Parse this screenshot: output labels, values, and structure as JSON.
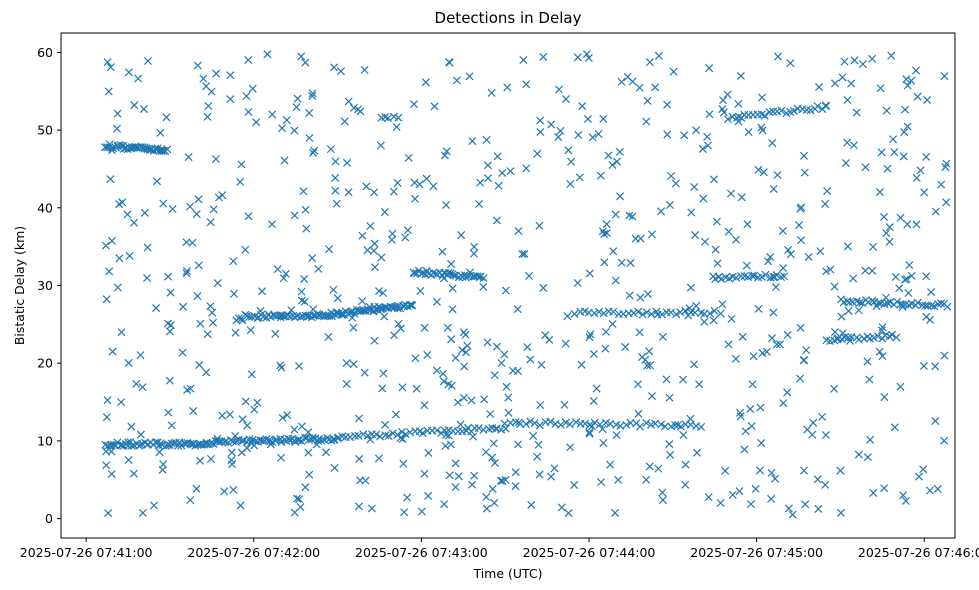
{
  "chart_data": {
    "type": "scatter",
    "title": "Detections in Delay",
    "xlabel": "Time (UTC)",
    "ylabel": "Bistatic Delay (km)",
    "xlim": [
      "2025-07-26 07:40:51",
      "2025-07-26 07:46:11"
    ],
    "ylim": [
      -2.5,
      62.5
    ],
    "xticks": [
      "2025-07-26 07:41:00",
      "2025-07-26 07:42:00",
      "2025-07-26 07:43:00",
      "2025-07-26 07:44:00",
      "2025-07-26 07:45:00",
      "2025-07-26 07:46:00"
    ],
    "yticks": [
      "0",
      "10",
      "20",
      "30",
      "40",
      "50",
      "60"
    ],
    "marker": "x",
    "grid": false,
    "series_color": "#1f77b4",
    "tracks": [
      {
        "x_start": "2025-07-26 07:41:07",
        "x_end": "2025-07-26 07:41:29",
        "y_start": 48.0,
        "y_end": 47.4,
        "count": 40
      },
      {
        "x_start": "2025-07-26 07:41:07",
        "x_end": "2025-07-26 07:41:43",
        "y_start": 9.6,
        "y_end": 9.6,
        "count": 50
      },
      {
        "x_start": "2025-07-26 07:41:43",
        "x_end": "2025-07-26 07:42:30",
        "y_start": 9.8,
        "y_end": 10.3,
        "count": 60
      },
      {
        "x_start": "2025-07-26 07:42:30",
        "x_end": "2025-07-26 07:43:30",
        "y_start": 10.5,
        "y_end": 11.6,
        "count": 40
      },
      {
        "x_start": "2025-07-26 07:43:30",
        "x_end": "2025-07-26 07:44:40",
        "y_start": 12.3,
        "y_end": 12.0,
        "count": 40
      },
      {
        "x_start": "2025-07-26 07:41:55",
        "x_end": "2025-07-26 07:42:20",
        "y_start": 26.0,
        "y_end": 26.1,
        "count": 30
      },
      {
        "x_start": "2025-07-26 07:42:20",
        "x_end": "2025-07-26 07:42:57",
        "y_start": 26.0,
        "y_end": 27.4,
        "count": 60
      },
      {
        "x_start": "2025-07-26 07:42:57",
        "x_end": "2025-07-26 07:43:22",
        "y_start": 31.8,
        "y_end": 31.0,
        "count": 35
      },
      {
        "x_start": "2025-07-26 07:43:55",
        "x_end": "2025-07-26 07:44:45",
        "y_start": 26.5,
        "y_end": 26.5,
        "count": 30
      },
      {
        "x_start": "2025-07-26 07:44:45",
        "x_end": "2025-07-26 07:45:10",
        "y_start": 31.0,
        "y_end": 31.2,
        "count": 20
      },
      {
        "x_start": "2025-07-26 07:45:25",
        "x_end": "2025-07-26 07:45:50",
        "y_start": 23.0,
        "y_end": 23.5,
        "count": 20
      },
      {
        "x_start": "2025-07-26 07:45:30",
        "x_end": "2025-07-26 07:46:08",
        "y_start": 28.0,
        "y_end": 27.5,
        "count": 35
      },
      {
        "x_start": "2025-07-26 07:44:50",
        "x_end": "2025-07-26 07:45:25",
        "y_start": 51.5,
        "y_end": 53.0,
        "count": 25
      }
    ],
    "clutter": {
      "x_range": [
        "2025-07-26 07:41:07",
        "2025-07-26 07:46:08"
      ],
      "y_range": [
        0.5,
        59.8
      ],
      "count": 760
    }
  }
}
